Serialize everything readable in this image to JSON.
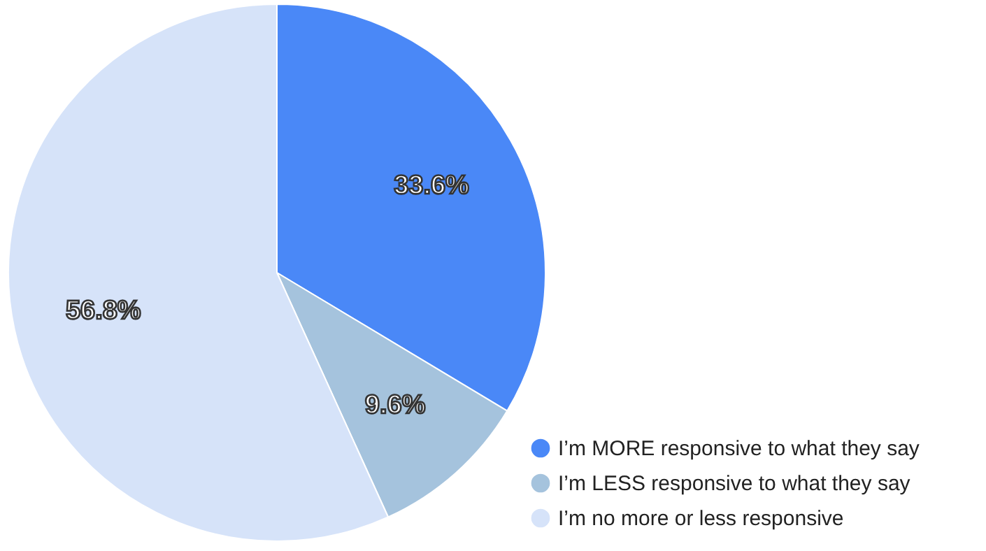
{
  "chart_data": {
    "type": "pie",
    "categories": [
      "I’m MORE responsive to what they say",
      "I’m LESS responsive to what they say",
      "I’m no more or less responsive"
    ],
    "values": [
      33.6,
      9.6,
      56.8
    ],
    "colors": [
      "#4a88f7",
      "#a5c3dd",
      "#d6e3f9"
    ],
    "value_labels": [
      "33.6%",
      "9.6%",
      "56.8%"
    ],
    "legend": "bottom right"
  }
}
